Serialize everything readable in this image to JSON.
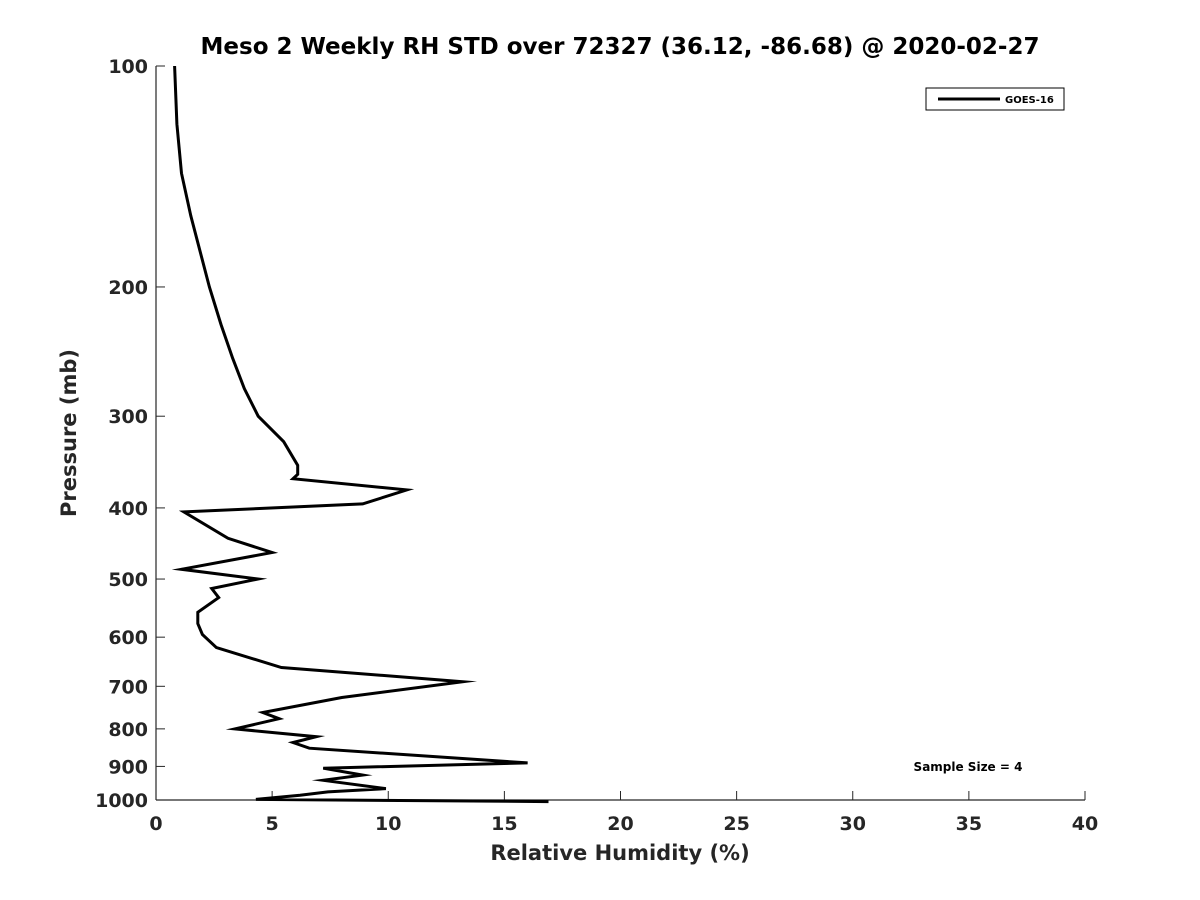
{
  "chart_data": {
    "type": "line",
    "title": "Meso 2 Weekly RH STD over 72327 (36.12, -86.68) @ 2020-02-27",
    "xlabel": "Relative Humidity (%)",
    "ylabel": "Pressure (mb)",
    "xlim": [
      0,
      40
    ],
    "ylim": [
      100,
      1000
    ],
    "yscale": "log",
    "reverse_y": true,
    "x_ticks": [
      0,
      5,
      10,
      15,
      20,
      25,
      30,
      35,
      40
    ],
    "y_ticks": [
      100,
      200,
      300,
      400,
      500,
      600,
      700,
      800,
      900,
      1000
    ],
    "legend_position": "top-right",
    "annotation": "Sample Size = 4",
    "series": [
      {
        "name": "GOES-16",
        "color": "#000000",
        "rh": [
          0.8,
          0.9,
          1.1,
          1.5,
          2.3,
          2.8,
          3.3,
          3.8,
          4.4,
          5.5,
          6.1,
          6.1,
          5.9,
          10.8,
          8.9,
          1.2,
          3.1,
          5.0,
          1.1,
          4.4,
          2.4,
          2.7,
          1.8,
          1.8,
          2.0,
          2.6,
          5.4,
          13.2,
          8.0,
          4.6,
          5.3,
          3.4,
          6.9,
          5.9,
          6.6,
          16.0,
          7.2,
          8.9,
          7.2,
          9.9,
          7.4,
          6.2,
          4.3,
          16.9
        ],
        "pressure": [
          100,
          120,
          140,
          160,
          200,
          225,
          250,
          275,
          300,
          325,
          350,
          360,
          365,
          378,
          395,
          405,
          440,
          460,
          485,
          500,
          515,
          530,
          555,
          575,
          595,
          620,
          660,
          690,
          725,
          760,
          775,
          800,
          820,
          835,
          850,
          890,
          905,
          925,
          940,
          965,
          975,
          985,
          998,
          1005
        ]
      }
    ]
  }
}
